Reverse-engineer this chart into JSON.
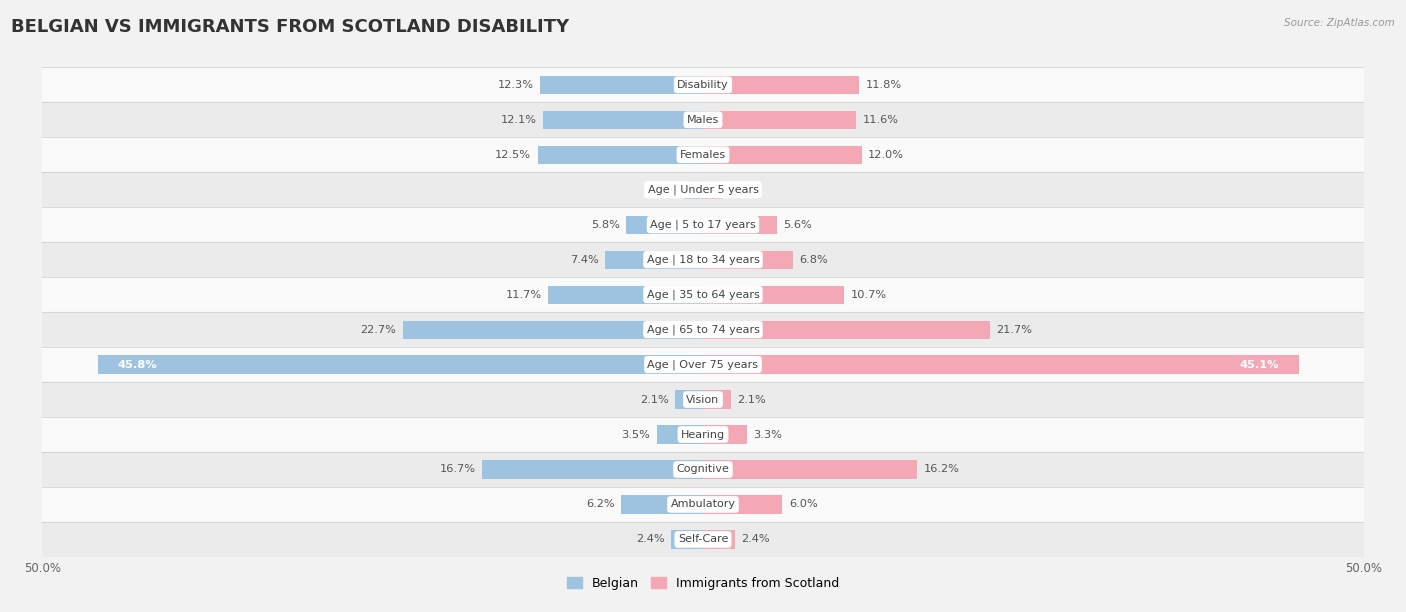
{
  "title": "BELGIAN VS IMMIGRANTS FROM SCOTLAND DISABILITY",
  "source": "Source: ZipAtlas.com",
  "categories": [
    "Disability",
    "Males",
    "Females",
    "Age | Under 5 years",
    "Age | 5 to 17 years",
    "Age | 18 to 34 years",
    "Age | 35 to 64 years",
    "Age | 65 to 74 years",
    "Age | Over 75 years",
    "Vision",
    "Hearing",
    "Cognitive",
    "Ambulatory",
    "Self-Care"
  ],
  "belgian": [
    12.3,
    12.1,
    12.5,
    1.4,
    5.8,
    7.4,
    11.7,
    22.7,
    45.8,
    2.1,
    3.5,
    16.7,
    6.2,
    2.4
  ],
  "scotland": [
    11.8,
    11.6,
    12.0,
    1.4,
    5.6,
    6.8,
    10.7,
    21.7,
    45.1,
    2.1,
    3.3,
    16.2,
    6.0,
    2.4
  ],
  "max_val": 50.0,
  "belgian_color": "#9dc3e0",
  "scotland_color": "#f4a7b5",
  "bar_height": 0.52,
  "bg_color": "#f2f2f2",
  "row_colors_even": "#fafafa",
  "row_colors_odd": "#ebebeb",
  "title_fontsize": 13,
  "label_fontsize": 8.5,
  "value_fontsize": 8.2,
  "legend_fontsize": 9,
  "cat_label_fontsize": 8
}
